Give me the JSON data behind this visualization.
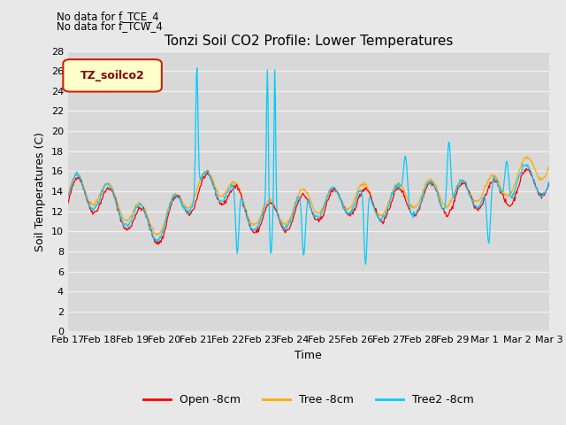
{
  "title": "Tonzi Soil CO2 Profile: Lower Temperatures",
  "subtitle1": "No data for f_TCE_4",
  "subtitle2": "No data for f_TCW_4",
  "xlabel": "Time",
  "ylabel": "Soil Temperatures (C)",
  "ylim": [
    0,
    28
  ],
  "yticks": [
    0,
    2,
    4,
    6,
    8,
    10,
    12,
    14,
    16,
    18,
    20,
    22,
    24,
    26,
    28
  ],
  "legend_label": "TZ_soilco2",
  "line_labels": [
    "Open -8cm",
    "Tree -8cm",
    "Tree2 -8cm"
  ],
  "line_colors": [
    "#ff0000",
    "#ffaa00",
    "#00ccff"
  ],
  "bg_color": "#e8e8e8",
  "plot_bg_color": "#d8d8d8",
  "grid_color": "#f0f0f0",
  "xtick_labels": [
    "Feb 17",
    "Feb 18",
    "Feb 19",
    "Feb 20",
    "Feb 21",
    "Feb 22",
    "Feb 23",
    "Feb 24",
    "Feb 25",
    "Feb 26",
    "Feb 27",
    "Feb 28",
    "Feb 29",
    "Mar 1",
    "Mar 2",
    "Mar 3"
  ],
  "n_days": 15
}
